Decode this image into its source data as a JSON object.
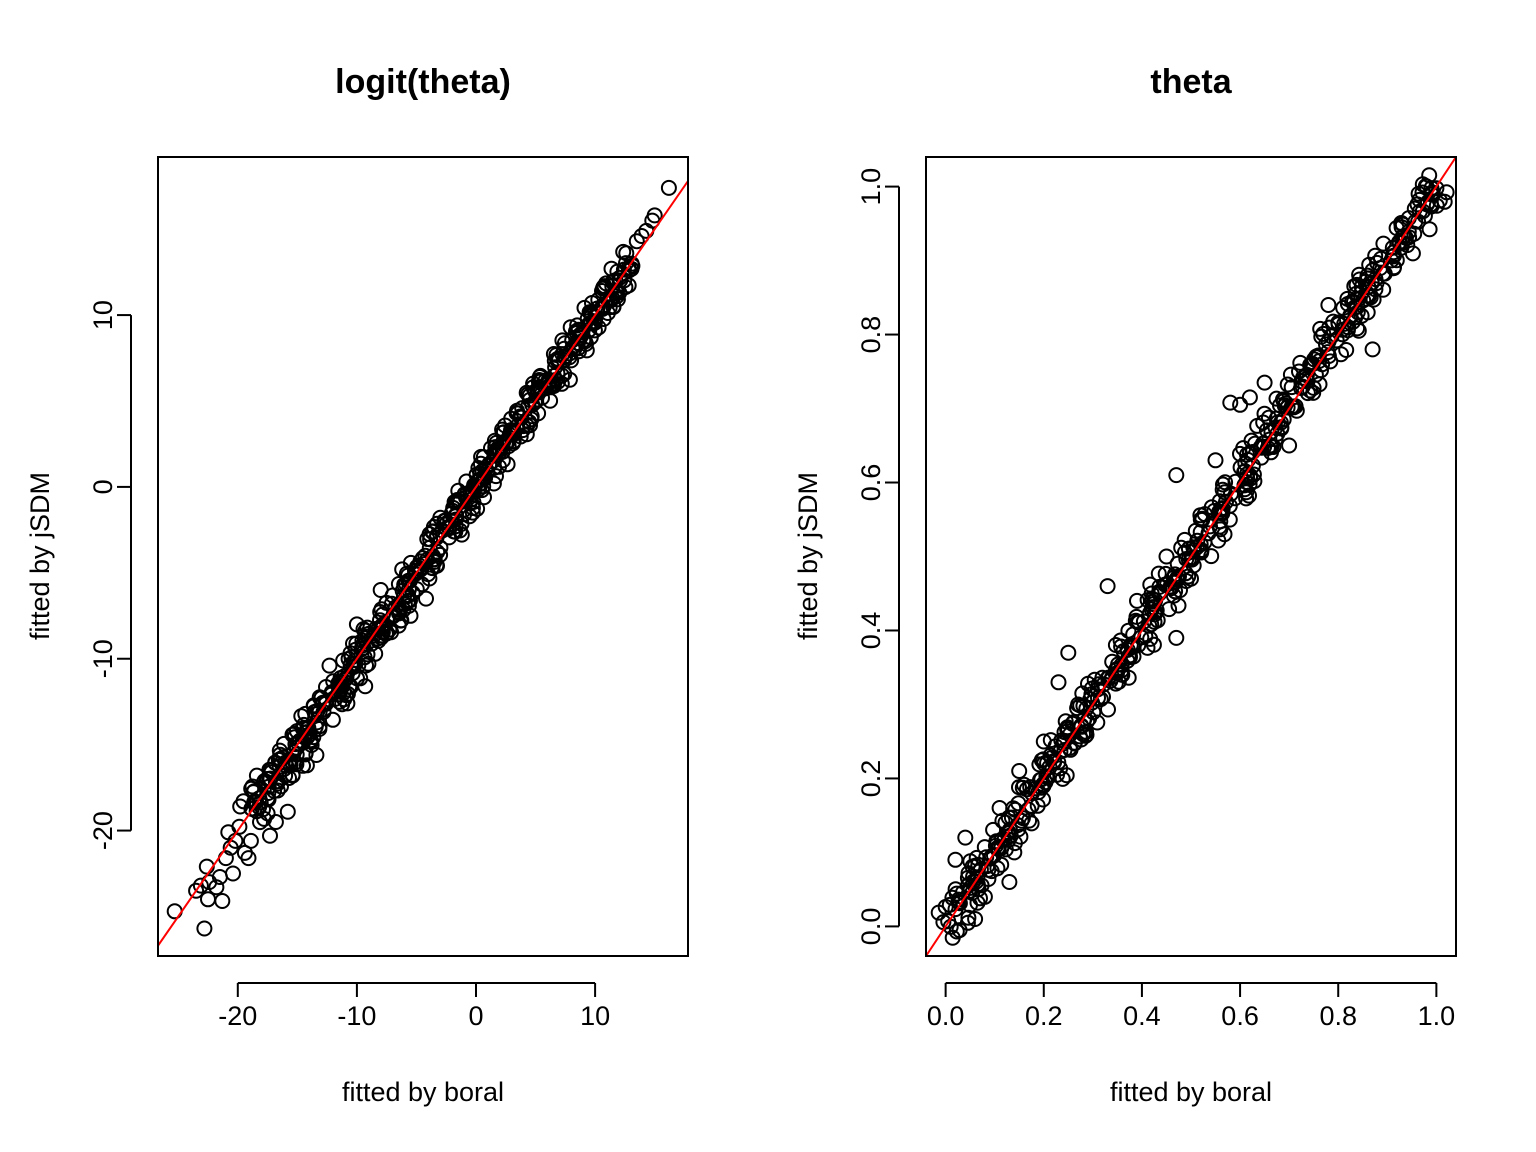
{
  "chart_data": [
    {
      "type": "scatter",
      "title": "logit(theta)",
      "xlabel": "fitted by boral",
      "ylabel": "fitted by jSDM",
      "xlim": [
        -26.7,
        17.8
      ],
      "ylim": [
        -27.3,
        19.2
      ],
      "xticks": [
        -20,
        -10,
        0,
        10
      ],
      "xtick_labels": [
        "-20",
        "-10",
        "0",
        "10"
      ],
      "yticks": [
        -20,
        -10,
        0,
        10
      ],
      "ytick_labels": [
        "-20",
        "-10",
        "0",
        "10"
      ],
      "reference_line": {
        "intercept": 0,
        "slope": 1,
        "color": "#ff0000"
      },
      "series": [
        {
          "values_band": {
            "from": -19,
            "to": 13,
            "spread": 0.9,
            "note_shape": "dense"
          },
          "points": [
            [
              16.2,
              17.4
            ],
            [
              15.0,
              15.8
            ],
            [
              14.8,
              15.5
            ],
            [
              14.3,
              14.9
            ],
            [
              13.9,
              14.6
            ],
            [
              13.5,
              14.3
            ],
            [
              -25.3,
              -24.7
            ],
            [
              -23.5,
              -23.5
            ],
            [
              -23.1,
              -23.2
            ],
            [
              -22.8,
              -25.7
            ],
            [
              -22.6,
              -22.1
            ],
            [
              -22.4,
              -23.0
            ],
            [
              -21.8,
              -23.3
            ],
            [
              -21.5,
              -22.7
            ],
            [
              -21.3,
              -24.1
            ],
            [
              -22.5,
              -24.0
            ],
            [
              -21.0,
              -21.6
            ],
            [
              -20.6,
              -21.0
            ],
            [
              -20.4,
              -22.5
            ],
            [
              -20.8,
              -20.1
            ],
            [
              -20.2,
              -20.6
            ],
            [
              -19.4,
              -21.3
            ],
            [
              -19.1,
              -21.6
            ],
            [
              -18.9,
              -20.6
            ],
            [
              -17.3,
              -20.3
            ],
            [
              -16.8,
              -19.5
            ],
            [
              -15.8,
              -18.9
            ],
            [
              -15.4,
              -16.8
            ],
            [
              -19.8,
              -18.6
            ],
            [
              -18.4,
              -16.8
            ],
            [
              -13.4,
              -15.6
            ],
            [
              -10.8,
              -12.6
            ],
            [
              -9.3,
              -11.6
            ],
            [
              -10.0,
              -8.0
            ],
            [
              -6.2,
              -4.8
            ],
            [
              -4.2,
              -6.5
            ],
            [
              -3.0,
              -1.8
            ],
            [
              0.2,
              1.1
            ],
            [
              3.4,
              4.3
            ],
            [
              -17.5,
              -19.0
            ],
            [
              -14.2,
              -16.2
            ],
            [
              -12.3,
              -10.4
            ],
            [
              -8.0,
              -6.0
            ],
            [
              -5.5,
              -7.5
            ],
            [
              1.5,
              0.2
            ],
            [
              4.8,
              5.8
            ],
            [
              7.2,
              6.0
            ],
            [
              8.5,
              9.4
            ]
          ]
        }
      ]
    },
    {
      "type": "scatter",
      "title": "theta",
      "xlabel": "fitted by boral",
      "ylabel": "fitted by jSDM",
      "xlim": [
        -0.04,
        1.04
      ],
      "ylim": [
        -0.04,
        1.04
      ],
      "xticks": [
        0.0,
        0.2,
        0.4,
        0.6,
        0.8,
        1.0
      ],
      "xtick_labels": [
        "0.0",
        "0.2",
        "0.4",
        "0.6",
        "0.8",
        "1.0"
      ],
      "yticks": [
        0.0,
        0.2,
        0.4,
        0.6,
        0.8,
        1.0
      ],
      "ytick_labels": [
        "0.0",
        "0.2",
        "0.4",
        "0.6",
        "0.8",
        "1.0"
      ],
      "reference_line": {
        "intercept": 0,
        "slope": 1,
        "color": "#ff0000"
      },
      "series": [
        {
          "values_band": {
            "from": 0.0,
            "to": 1.0,
            "spread": 0.025,
            "note_shape": "dense"
          },
          "points": [
            [
              0.65,
              0.735
            ],
            [
              0.62,
              0.715
            ],
            [
              0.6,
              0.705
            ],
            [
              0.58,
              0.708
            ],
            [
              0.47,
              0.61
            ],
            [
              0.33,
              0.46
            ],
            [
              0.25,
              0.37
            ],
            [
              0.23,
              0.33
            ],
            [
              0.87,
              0.78
            ],
            [
              0.47,
              0.39
            ],
            [
              0.55,
              0.63
            ],
            [
              0.62,
              0.64
            ],
            [
              0.7,
              0.65
            ],
            [
              0.04,
              0.12
            ],
            [
              0.02,
              0.09
            ],
            [
              0.13,
              0.06
            ],
            [
              0.14,
              0.1
            ],
            [
              0.27,
              0.3
            ],
            [
              0.39,
              0.44
            ],
            [
              0.42,
              0.45
            ],
            [
              0.45,
              0.5
            ],
            [
              0.52,
              0.55
            ],
            [
              0.86,
              0.83
            ],
            [
              0.78,
              0.84
            ],
            [
              0.36,
              0.34
            ],
            [
              0.2,
              0.25
            ],
            [
              0.15,
              0.21
            ],
            [
              0.08,
              0.04
            ],
            [
              0.72,
              0.75
            ],
            [
              0.93,
              0.95
            ],
            [
              0.5,
              0.47
            ],
            [
              0.28,
              0.26
            ],
            [
              0.11,
              0.16
            ],
            [
              0.06,
              0.01
            ],
            [
              0.98,
              1.0
            ]
          ]
        }
      ]
    }
  ]
}
